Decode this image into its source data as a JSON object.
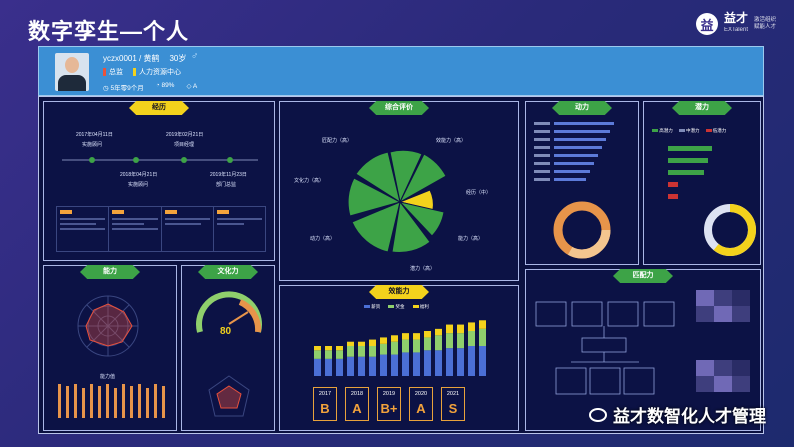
{
  "page": {
    "title": "数字孪生—个人"
  },
  "brand": {
    "name": "益才",
    "sub": "EXTalent",
    "slogan1": "激活组织",
    "slogan2": "赋能人才"
  },
  "profile": {
    "id_name": "yczx0001 / 黄鹤",
    "age": "30岁",
    "gender_icon": "male-symbol",
    "dept1": "总监",
    "dept2": "人力资源中心",
    "tenure": "5年零9个月",
    "score": "89%",
    "level": "A",
    "dept1_color": "#e8533b",
    "dept2_color": "#f3d21c"
  },
  "panels": {
    "experience": {
      "title": "经历",
      "timeline": [
        {
          "date": "2017年04月11日",
          "label": "实施顾问"
        },
        {
          "date": "2019年02月21日",
          "label": "项目经理"
        },
        {
          "date": "2018年04月21日",
          "label": "实施顾问"
        },
        {
          "date": "2019年11月23日",
          "label": "部门总监"
        }
      ]
    },
    "overall": {
      "title": "综合评价",
      "labels": [
        {
          "text": "匠配力（高）"
        },
        {
          "text": "效能力（高）"
        },
        {
          "text": "文化力（高）"
        },
        {
          "text": "经历（中）"
        },
        {
          "text": "动力（高）"
        },
        {
          "text": "能力（高）"
        },
        {
          "text": "潜力（高）"
        }
      ]
    },
    "motivation": {
      "title": "动力"
    },
    "potential": {
      "title": "潜力",
      "legend": [
        "高潜力",
        "中潜力",
        "低潜力"
      ]
    },
    "ability": {
      "title": "能力",
      "legend_text": "能力值"
    },
    "culture": {
      "title": "文化力",
      "gauge_value": "80"
    },
    "performance": {
      "title": "效能力",
      "legend": [
        "薪资",
        "奖金",
        "福利"
      ],
      "grades": [
        {
          "year": "2017",
          "value": "B"
        },
        {
          "year": "2018",
          "value": "A"
        },
        {
          "year": "2019",
          "value": "B+"
        },
        {
          "year": "2020",
          "value": "A"
        },
        {
          "year": "2021",
          "value": "S"
        }
      ]
    },
    "matching": {
      "title": "匹配力"
    }
  },
  "chart_data": {
    "type": "bar",
    "title": "效能力",
    "series": [
      {
        "name": "薪资",
        "values": [
          8,
          8,
          8,
          9,
          9,
          9,
          10,
          10,
          11,
          11,
          12,
          12,
          13,
          13,
          14,
          14
        ]
      },
      {
        "name": "奖金",
        "values": [
          4,
          4,
          4,
          5,
          5,
          5,
          5,
          6,
          6,
          6,
          6,
          7,
          7,
          7,
          7,
          8
        ]
      },
      {
        "name": "福利",
        "values": [
          2,
          2,
          2,
          2,
          2,
          3,
          3,
          3,
          3,
          3,
          3,
          3,
          4,
          4,
          4,
          4
        ]
      }
    ],
    "ylim": [
      0,
      28
    ]
  },
  "watermark": {
    "text": "益才数智化人才管理"
  }
}
